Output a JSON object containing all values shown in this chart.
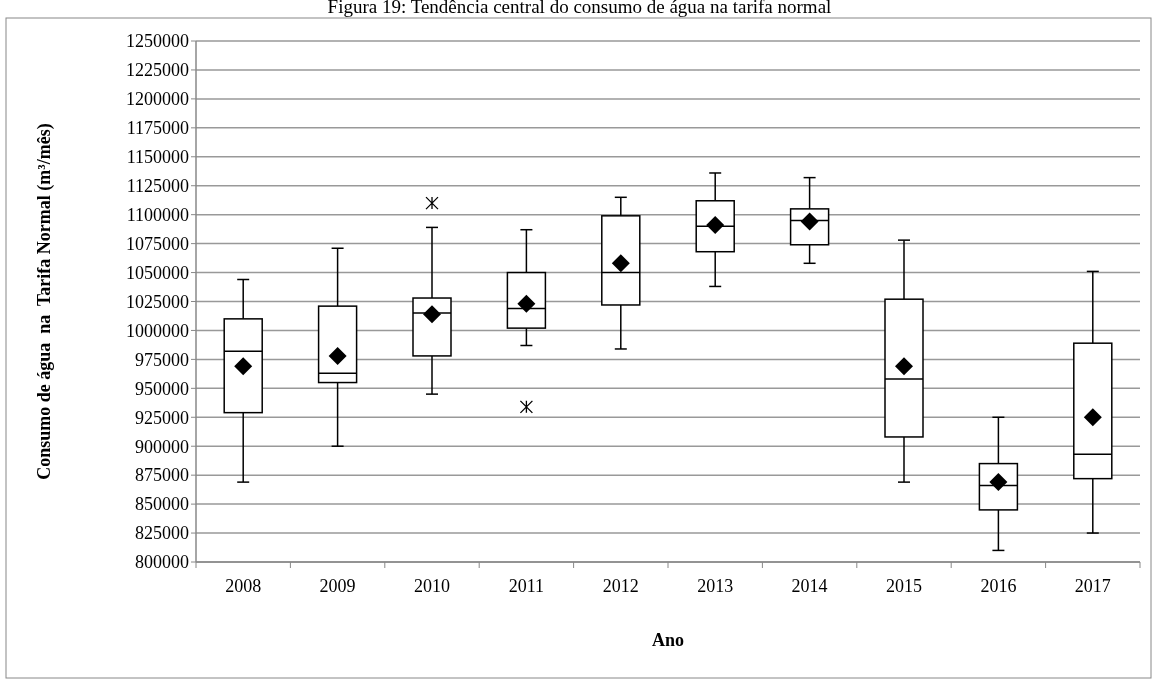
{
  "chart_data": {
    "type": "box",
    "title": "Figura 19: Tendência central do consumo de água na tarifa normal",
    "xlabel": "Ano",
    "ylabel": "Consumo de água  na  Tarifa Normal (m³/mês)",
    "categories": [
      "2008",
      "2009",
      "2010",
      "2011",
      "2012",
      "2013",
      "2014",
      "2015",
      "2016",
      "2017"
    ],
    "boxes": [
      {
        "low": 869000,
        "q1": 929000,
        "median": 982000,
        "q3": 1010000,
        "high": 1044000,
        "mean": 969000
      },
      {
        "low": 900000,
        "q1": 955000,
        "median": 963000,
        "q3": 1021000,
        "high": 1071000,
        "mean": 978000
      },
      {
        "low": 945000,
        "q1": 978000,
        "median": 1015000,
        "q3": 1028000,
        "high": 1089000,
        "mean": 1014000,
        "outliers": [
          1110000
        ]
      },
      {
        "low": 987000,
        "q1": 1002000,
        "median": 1019000,
        "q3": 1050000,
        "high": 1087000,
        "mean": 1023000,
        "outliers": [
          934000
        ]
      },
      {
        "low": 984000,
        "q1": 1022000,
        "median": 1050000,
        "q3": 1099000,
        "high": 1115000,
        "mean": 1058000
      },
      {
        "low": 1038000,
        "q1": 1068000,
        "median": 1090000,
        "q3": 1112000,
        "high": 1136000,
        "mean": 1091000
      },
      {
        "low": 1058000,
        "q1": 1074000,
        "median": 1095000,
        "q3": 1105000,
        "high": 1132000,
        "mean": 1094000
      },
      {
        "low": 869000,
        "q1": 908000,
        "median": 958000,
        "q3": 1027000,
        "high": 1078000,
        "mean": 969000
      },
      {
        "low": 810000,
        "q1": 845000,
        "median": 866000,
        "q3": 885000,
        "high": 925000,
        "mean": 869000
      },
      {
        "low": 825000,
        "q1": 872000,
        "median": 893000,
        "q3": 989000,
        "high": 1051000,
        "mean": 925000
      }
    ],
    "color": "#000000",
    "ylim": [
      800000,
      1250000
    ],
    "yticks": [
      800000,
      825000,
      850000,
      875000,
      900000,
      925000,
      950000,
      975000,
      1000000,
      1025000,
      1050000,
      1075000,
      1100000,
      1125000,
      1150000,
      1175000,
      1200000,
      1225000,
      1250000
    ],
    "grid": "y"
  }
}
